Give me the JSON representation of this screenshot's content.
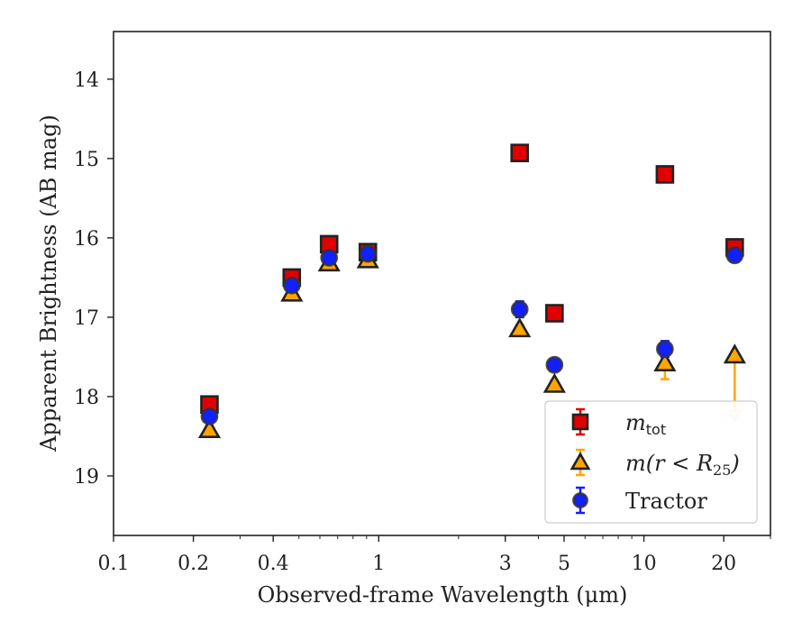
{
  "chart_data": {
    "type": "scatter",
    "title": "",
    "xlabel": "Observed-frame Wavelength (μm)",
    "ylabel": "Apparent Brightness (AB mag)",
    "xscale": "log",
    "yaxis_inverted": true,
    "xlim": [
      0.1,
      30
    ],
    "ylim": [
      13.4,
      19.75
    ],
    "xticks": [
      0.1,
      0.2,
      0.4,
      1,
      3,
      5,
      10,
      20
    ],
    "xtick_labels": [
      "0.1",
      "0.2",
      "0.4",
      "1",
      "3",
      "5",
      "10",
      "20"
    ],
    "yticks": [
      14,
      15,
      16,
      17,
      18,
      19
    ],
    "ytick_labels": [
      "14",
      "15",
      "16",
      "17",
      "18",
      "19"
    ],
    "grid": false,
    "legend_position": "bottom-right",
    "series": [
      {
        "name": "m_tot",
        "legend_main": "m",
        "legend_sub": "tot",
        "marker": "square",
        "fill": "#e00000",
        "edge": "#222222",
        "errcolor": "#e00000",
        "points": [
          {
            "x": 0.23,
            "y": 18.1,
            "err": 0.06
          },
          {
            "x": 0.47,
            "y": 16.5,
            "err": 0.06
          },
          {
            "x": 0.65,
            "y": 16.08,
            "err": 0.06
          },
          {
            "x": 0.91,
            "y": 16.18,
            "err": 0.06
          },
          {
            "x": 3.4,
            "y": 14.93,
            "err": 0.06
          },
          {
            "x": 4.6,
            "y": 16.95,
            "err": 0.06
          },
          {
            "x": 12.0,
            "y": 15.2,
            "err": 0.08
          },
          {
            "x": 22.0,
            "y": 16.12,
            "err": 0.1
          }
        ]
      },
      {
        "name": "m(r < R25)",
        "legend_main": "m(r < R",
        "legend_sub": "25",
        "legend_close": ")",
        "marker": "triangle",
        "fill": "#ffa500",
        "edge": "#222222",
        "errcolor": "#ffa500",
        "points": [
          {
            "x": 0.23,
            "y": 18.42,
            "err": 0.05
          },
          {
            "x": 0.47,
            "y": 16.7,
            "err": 0.05
          },
          {
            "x": 0.65,
            "y": 16.32,
            "err": 0.05
          },
          {
            "x": 0.91,
            "y": 16.28,
            "err": 0.05
          },
          {
            "x": 3.4,
            "y": 17.15,
            "err": 0.05
          },
          {
            "x": 4.6,
            "y": 17.85,
            "err": 0.05
          },
          {
            "x": 12.0,
            "y": 17.58,
            "err": 0.2
          },
          {
            "x": 22.0,
            "y": 17.48,
            "upper_limit_to": 18.28
          }
        ]
      },
      {
        "name": "Tractor",
        "legend_main": "Tractor",
        "marker": "circle",
        "fill": "#1020ff",
        "edge": "#333333",
        "errcolor": "#1020ff",
        "points": [
          {
            "x": 0.23,
            "y": 18.25,
            "err": 0.05
          },
          {
            "x": 0.47,
            "y": 16.6,
            "err": 0.05
          },
          {
            "x": 0.65,
            "y": 16.25,
            "err": 0.05
          },
          {
            "x": 0.91,
            "y": 16.2,
            "err": 0.05
          },
          {
            "x": 3.4,
            "y": 16.9,
            "err": 0.1
          },
          {
            "x": 4.6,
            "y": 17.6,
            "err": 0.07
          },
          {
            "x": 12.0,
            "y": 17.4,
            "err": 0.1
          },
          {
            "x": 22.0,
            "y": 16.22,
            "err": 0.08
          }
        ]
      }
    ]
  }
}
